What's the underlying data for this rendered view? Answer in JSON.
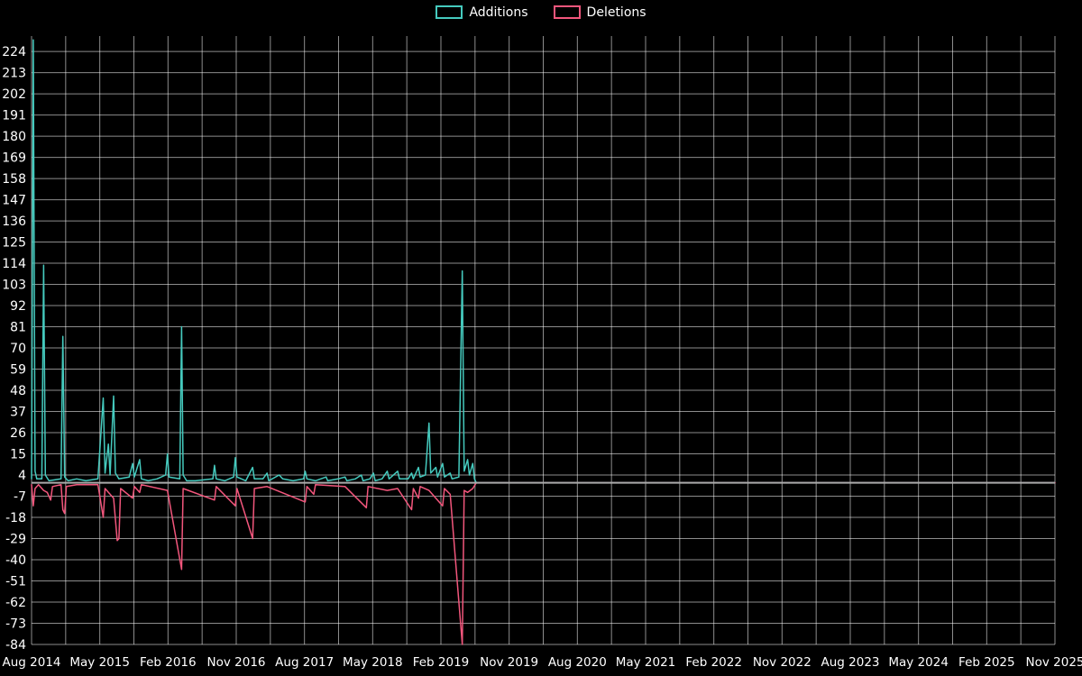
{
  "page": {
    "background": "#000000",
    "text_color": "#ffffff"
  },
  "legend": {
    "items": [
      {
        "label": "Additions",
        "color": "#45cabe"
      },
      {
        "label": "Deletions",
        "color": "#f2567c"
      }
    ]
  },
  "chart_data": {
    "type": "line",
    "title": "",
    "xlabel": "",
    "ylabel": "",
    "legend_position": "top-center",
    "grid": true,
    "x_tick_labels": [
      "Aug 2014",
      "May 2015",
      "Feb 2016",
      "Nov 2016",
      "Aug 2017",
      "May 2018",
      "Feb 2019",
      "Nov 2019",
      "Aug 2020",
      "May 2021",
      "Feb 2022",
      "Nov 2022",
      "Aug 2023",
      "May 2024",
      "Feb 2025",
      "Nov 2025"
    ],
    "x_tick_month_step": 9,
    "grid_minor_month_step": 4.5,
    "x_domain_months": 135,
    "y_ticks": [
      224,
      213,
      202,
      191,
      180,
      169,
      158,
      147,
      136,
      125,
      114,
      103,
      92,
      81,
      70,
      59,
      48,
      37,
      26,
      15,
      4,
      -7,
      -18,
      -29,
      -40,
      -51,
      -62,
      -73,
      -84
    ],
    "ylim": [
      -84,
      232
    ],
    "colors": {
      "grid": "rgba(255,255,255,0.55)",
      "zero_line": "#aaaaaa",
      "label": "#ffffff",
      "background": "#000000"
    },
    "series": [
      {
        "name": "Additions",
        "color": "#45cabe",
        "points": [
          [
            "2014-08-01",
            2
          ],
          [
            "2014-08-08",
            230
          ],
          [
            "2014-08-15",
            6
          ],
          [
            "2014-08-22",
            2
          ],
          [
            "2014-09-12",
            2
          ],
          [
            "2014-09-19",
            113
          ],
          [
            "2014-09-26",
            4
          ],
          [
            "2014-10-10",
            1
          ],
          [
            "2014-11-28",
            2
          ],
          [
            "2014-12-05",
            76
          ],
          [
            "2014-12-12",
            3
          ],
          [
            "2014-12-26",
            1
          ],
          [
            "2015-01-30",
            2
          ],
          [
            "2015-03-06",
            1
          ],
          [
            "2015-04-24",
            2
          ],
          [
            "2015-05-15",
            44
          ],
          [
            "2015-05-22",
            5
          ],
          [
            "2015-06-05",
            20
          ],
          [
            "2015-06-12",
            4
          ],
          [
            "2015-06-26",
            45
          ],
          [
            "2015-07-03",
            5
          ],
          [
            "2015-07-17",
            2
          ],
          [
            "2015-08-28",
            3
          ],
          [
            "2015-09-11",
            10
          ],
          [
            "2015-09-18",
            3
          ],
          [
            "2015-10-09",
            12
          ],
          [
            "2015-10-16",
            2
          ],
          [
            "2015-11-13",
            1
          ],
          [
            "2015-12-18",
            2
          ],
          [
            "2016-01-22",
            4
          ],
          [
            "2016-01-29",
            15
          ],
          [
            "2016-02-05",
            3
          ],
          [
            "2016-03-18",
            2
          ],
          [
            "2016-03-25",
            81
          ],
          [
            "2016-04-01",
            4
          ],
          [
            "2016-04-15",
            1
          ],
          [
            "2016-05-20",
            1
          ],
          [
            "2016-07-29",
            2
          ],
          [
            "2016-08-05",
            9
          ],
          [
            "2016-08-12",
            2
          ],
          [
            "2016-09-16",
            1
          ],
          [
            "2016-10-21",
            3
          ],
          [
            "2016-10-28",
            13
          ],
          [
            "2016-11-04",
            3
          ],
          [
            "2016-12-09",
            1
          ],
          [
            "2017-01-06",
            8
          ],
          [
            "2017-01-13",
            2
          ],
          [
            "2017-02-17",
            2
          ],
          [
            "2017-03-03",
            5
          ],
          [
            "2017-03-10",
            1
          ],
          [
            "2017-04-21",
            4
          ],
          [
            "2017-05-05",
            2
          ],
          [
            "2017-06-16",
            1
          ],
          [
            "2017-07-28",
            2
          ],
          [
            "2017-08-04",
            6
          ],
          [
            "2017-08-11",
            2
          ],
          [
            "2017-09-15",
            1
          ],
          [
            "2017-10-27",
            3
          ],
          [
            "2017-11-03",
            1
          ],
          [
            "2017-12-15",
            2
          ],
          [
            "2018-01-12",
            3
          ],
          [
            "2018-01-19",
            1
          ],
          [
            "2018-02-23",
            2
          ],
          [
            "2018-03-16",
            4
          ],
          [
            "2018-03-23",
            1
          ],
          [
            "2018-04-20",
            2
          ],
          [
            "2018-05-04",
            5
          ],
          [
            "2018-05-11",
            1
          ],
          [
            "2018-06-08",
            2
          ],
          [
            "2018-06-29",
            6
          ],
          [
            "2018-07-06",
            2
          ],
          [
            "2018-08-10",
            6
          ],
          [
            "2018-08-17",
            2
          ],
          [
            "2018-09-21",
            2
          ],
          [
            "2018-10-05",
            5
          ],
          [
            "2018-10-12",
            2
          ],
          [
            "2018-11-02",
            8
          ],
          [
            "2018-11-09",
            3
          ],
          [
            "2018-11-30",
            4
          ],
          [
            "2018-12-14",
            31
          ],
          [
            "2018-12-21",
            5
          ],
          [
            "2019-01-11",
            8
          ],
          [
            "2019-01-18",
            3
          ],
          [
            "2019-02-08",
            10
          ],
          [
            "2019-02-15",
            3
          ],
          [
            "2019-03-08",
            5
          ],
          [
            "2019-03-15",
            2
          ],
          [
            "2019-04-12",
            3
          ],
          [
            "2019-04-26",
            110
          ],
          [
            "2019-05-03",
            6
          ],
          [
            "2019-05-17",
            12
          ],
          [
            "2019-05-24",
            4
          ],
          [
            "2019-06-07",
            10
          ],
          [
            "2019-06-14",
            2
          ],
          [
            "2019-06-21",
            0
          ],
          [
            "2025-11-01",
            0
          ]
        ]
      },
      {
        "name": "Deletions",
        "color": "#f2567c",
        "points": [
          [
            "2014-08-01",
            -1
          ],
          [
            "2014-08-08",
            -12
          ],
          [
            "2014-08-15",
            -3
          ],
          [
            "2014-08-29",
            -1
          ],
          [
            "2014-09-19",
            -4
          ],
          [
            "2014-10-03",
            -5
          ],
          [
            "2014-10-17",
            -9
          ],
          [
            "2014-10-24",
            -2
          ],
          [
            "2014-11-28",
            -1
          ],
          [
            "2014-12-05",
            -14
          ],
          [
            "2014-12-12",
            -16
          ],
          [
            "2014-12-19",
            -2
          ],
          [
            "2015-01-30",
            -1
          ],
          [
            "2015-04-24",
            -1
          ],
          [
            "2015-05-15",
            -18
          ],
          [
            "2015-05-22",
            -3
          ],
          [
            "2015-06-26",
            -8
          ],
          [
            "2015-07-10",
            -30
          ],
          [
            "2015-07-17",
            -29
          ],
          [
            "2015-07-24",
            -3
          ],
          [
            "2015-09-11",
            -8
          ],
          [
            "2015-09-18",
            -2
          ],
          [
            "2015-10-09",
            -5
          ],
          [
            "2015-10-16",
            -1
          ],
          [
            "2016-01-29",
            -4
          ],
          [
            "2016-03-25",
            -45
          ],
          [
            "2016-04-01",
            -3
          ],
          [
            "2016-08-05",
            -9
          ],
          [
            "2016-08-12",
            -2
          ],
          [
            "2016-10-28",
            -12
          ],
          [
            "2016-11-04",
            -3
          ],
          [
            "2017-01-06",
            -29
          ],
          [
            "2017-01-13",
            -3
          ],
          [
            "2017-03-03",
            -2
          ],
          [
            "2017-08-04",
            -10
          ],
          [
            "2017-08-11",
            -2
          ],
          [
            "2017-09-08",
            -6
          ],
          [
            "2017-09-15",
            -1
          ],
          [
            "2018-01-12",
            -2
          ],
          [
            "2018-04-06",
            -13
          ],
          [
            "2018-04-13",
            -2
          ],
          [
            "2018-06-29",
            -4
          ],
          [
            "2018-08-10",
            -3
          ],
          [
            "2018-10-05",
            -14
          ],
          [
            "2018-10-12",
            -3
          ],
          [
            "2018-11-02",
            -8
          ],
          [
            "2018-11-09",
            -2
          ],
          [
            "2018-12-14",
            -4
          ],
          [
            "2019-02-08",
            -12
          ],
          [
            "2019-02-15",
            -3
          ],
          [
            "2019-03-08",
            -6
          ],
          [
            "2019-04-26",
            -84
          ],
          [
            "2019-05-03",
            -4
          ],
          [
            "2019-05-17",
            -5
          ],
          [
            "2019-06-07",
            -3
          ],
          [
            "2019-06-21",
            0
          ],
          [
            "2025-11-01",
            0
          ]
        ]
      }
    ]
  }
}
